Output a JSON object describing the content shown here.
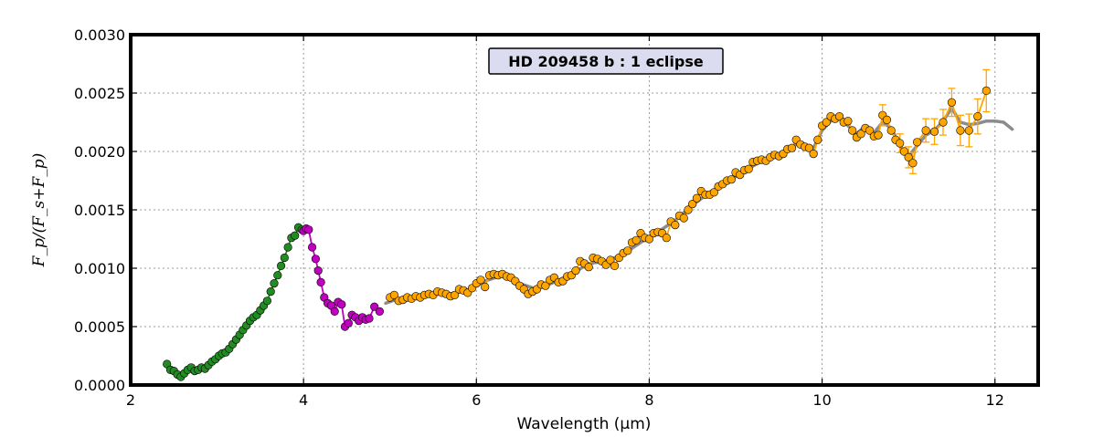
{
  "chart_data": {
    "type": "scatter",
    "title": "HD 209458 b : 1 eclipse",
    "xlabel": "Wavelength (μm)",
    "ylabel": "F_p/(F_s+F_p)",
    "xlim": [
      2,
      12.5
    ],
    "ylim": [
      0,
      0.003
    ],
    "xticks": [
      "2",
      "4",
      "6",
      "8",
      "10",
      "12"
    ],
    "yticks": [
      "0.0000",
      "0.0005",
      "0.0010",
      "0.0015",
      "0.0020",
      "0.0025",
      "0.0030"
    ],
    "grid": true,
    "colors": {
      "green": "#228B22",
      "magenta": "#BF00BF",
      "orange": "#FFA500",
      "model": "#8c8c8c"
    },
    "series": [
      {
        "color": "green",
        "points": [
          [
            2.42,
            0.00018
          ],
          [
            2.46,
            0.00013
          ],
          [
            2.5,
            0.00012
          ],
          [
            2.54,
            9e-05
          ],
          [
            2.58,
            7e-05
          ],
          [
            2.62,
            0.0001
          ],
          [
            2.66,
            0.00013
          ],
          [
            2.7,
            0.00015
          ],
          [
            2.74,
            0.00012
          ],
          [
            2.78,
            0.00013
          ],
          [
            2.82,
            0.00015
          ],
          [
            2.86,
            0.00014
          ],
          [
            2.9,
            0.00017
          ],
          [
            2.94,
            0.0002
          ],
          [
            2.98,
            0.00022
          ],
          [
            3.02,
            0.00025
          ],
          [
            3.06,
            0.00027
          ],
          [
            3.1,
            0.00028
          ],
          [
            3.14,
            0.00031
          ],
          [
            3.18,
            0.00035
          ],
          [
            3.22,
            0.00039
          ],
          [
            3.26,
            0.00043
          ],
          [
            3.3,
            0.00047
          ],
          [
            3.34,
            0.00051
          ],
          [
            3.38,
            0.00055
          ],
          [
            3.42,
            0.00058
          ],
          [
            3.46,
            0.0006
          ],
          [
            3.5,
            0.00064
          ],
          [
            3.54,
            0.00068
          ],
          [
            3.58,
            0.00072
          ],
          [
            3.62,
            0.0008
          ],
          [
            3.66,
            0.00087
          ],
          [
            3.7,
            0.00094
          ],
          [
            3.74,
            0.00102
          ],
          [
            3.78,
            0.00109
          ],
          [
            3.82,
            0.00118
          ],
          [
            3.86,
            0.00126
          ],
          [
            3.9,
            0.00128
          ],
          [
            3.94,
            0.00135
          ],
          [
            3.98,
            0.00133
          ]
        ]
      },
      {
        "color": "magenta",
        "points": [
          [
            4.0,
            0.00132
          ],
          [
            4.03,
            0.00134
          ],
          [
            4.06,
            0.00133
          ],
          [
            4.1,
            0.00118
          ],
          [
            4.14,
            0.00108
          ],
          [
            4.17,
            0.00098
          ],
          [
            4.2,
            0.00088
          ],
          [
            4.24,
            0.00075
          ],
          [
            4.28,
            0.0007
          ],
          [
            4.32,
            0.00068
          ],
          [
            4.36,
            0.00063
          ],
          [
            4.4,
            0.00071
          ],
          [
            4.44,
            0.00069
          ],
          [
            4.48,
            0.0005
          ],
          [
            4.52,
            0.00053
          ],
          [
            4.56,
            0.0006
          ],
          [
            4.6,
            0.00058
          ],
          [
            4.64,
            0.00055
          ],
          [
            4.68,
            0.00058
          ],
          [
            4.72,
            0.00056
          ],
          [
            4.76,
            0.00057
          ],
          [
            4.82,
            0.00067
          ],
          [
            4.88,
            0.00063
          ]
        ]
      },
      {
        "color": "orange",
        "points": [
          [
            5.0,
            0.00075
          ],
          [
            5.05,
            0.00077
          ],
          [
            5.1,
            0.00072
          ],
          [
            5.15,
            0.00073
          ],
          [
            5.2,
            0.00075
          ],
          [
            5.25,
            0.00074
          ],
          [
            5.3,
            0.00076
          ],
          [
            5.35,
            0.00075
          ],
          [
            5.4,
            0.00077
          ],
          [
            5.45,
            0.00078
          ],
          [
            5.5,
            0.00077
          ],
          [
            5.55,
            0.0008
          ],
          [
            5.6,
            0.00079
          ],
          [
            5.65,
            0.00078
          ],
          [
            5.7,
            0.00076
          ],
          [
            5.75,
            0.00077
          ],
          [
            5.8,
            0.00082
          ],
          [
            5.85,
            0.00081
          ],
          [
            5.9,
            0.00079
          ],
          [
            5.95,
            0.00083
          ],
          [
            6.0,
            0.00087
          ],
          [
            6.05,
            0.0009
          ],
          [
            6.1,
            0.00084
          ],
          [
            6.15,
            0.00094
          ],
          [
            6.2,
            0.00095
          ],
          [
            6.25,
            0.00094
          ],
          [
            6.3,
            0.00095
          ],
          [
            6.35,
            0.00093
          ],
          [
            6.4,
            0.00092
          ],
          [
            6.45,
            0.00089
          ],
          [
            6.5,
            0.00085
          ],
          [
            6.55,
            0.00082
          ],
          [
            6.6,
            0.00078
          ],
          [
            6.65,
            0.0008
          ],
          [
            6.7,
            0.00082
          ],
          [
            6.75,
            0.00086
          ],
          [
            6.8,
            0.00085
          ],
          [
            6.85,
            0.0009
          ],
          [
            6.9,
            0.00092
          ],
          [
            6.95,
            0.00088
          ],
          [
            7.0,
            0.00089
          ],
          [
            7.05,
            0.00093
          ],
          [
            7.1,
            0.00094
          ],
          [
            7.15,
            0.00098
          ],
          [
            7.2,
            0.00106
          ],
          [
            7.25,
            0.00104
          ],
          [
            7.3,
            0.00101
          ],
          [
            7.35,
            0.00109
          ],
          [
            7.4,
            0.00108
          ],
          [
            7.45,
            0.00106
          ],
          [
            7.5,
            0.00103
          ],
          [
            7.55,
            0.00107
          ],
          [
            7.6,
            0.00102
          ],
          [
            7.65,
            0.00109
          ],
          [
            7.7,
            0.00113
          ],
          [
            7.75,
            0.00115
          ],
          [
            7.8,
            0.00122
          ],
          [
            7.85,
            0.00124
          ],
          [
            7.9,
            0.0013
          ],
          [
            7.95,
            0.00126
          ],
          [
            8.0,
            0.00125
          ],
          [
            8.05,
            0.0013
          ],
          [
            8.1,
            0.00131
          ],
          [
            8.15,
            0.0013
          ],
          [
            8.2,
            0.00126
          ],
          [
            8.25,
            0.0014
          ],
          [
            8.3,
            0.00137
          ],
          [
            8.35,
            0.00145
          ],
          [
            8.4,
            0.00143
          ],
          [
            8.45,
            0.0015
          ],
          [
            8.5,
            0.00155
          ],
          [
            8.55,
            0.0016
          ],
          [
            8.6,
            0.00166
          ],
          [
            8.65,
            0.00163
          ],
          [
            8.7,
            0.00163
          ],
          [
            8.75,
            0.00165
          ],
          [
            8.8,
            0.0017
          ],
          [
            8.85,
            0.00172
          ],
          [
            8.9,
            0.00175
          ],
          [
            8.95,
            0.00176
          ],
          [
            9.0,
            0.00182
          ],
          [
            9.05,
            0.0018
          ],
          [
            9.1,
            0.00184
          ],
          [
            9.15,
            0.00185
          ],
          [
            9.2,
            0.00191
          ],
          [
            9.25,
            0.00192
          ],
          [
            9.3,
            0.00193
          ],
          [
            9.35,
            0.00192
          ],
          [
            9.4,
            0.00195
          ],
          [
            9.45,
            0.00197
          ],
          [
            9.5,
            0.00196
          ],
          [
            9.55,
            0.00198
          ],
          [
            9.6,
            0.00202
          ],
          [
            9.65,
            0.00203
          ],
          [
            9.7,
            0.0021
          ],
          [
            9.75,
            0.00206
          ],
          [
            9.8,
            0.00204
          ],
          [
            9.85,
            0.00203
          ],
          [
            9.9,
            0.00198
          ],
          [
            9.95,
            0.0021
          ],
          [
            10.0,
            0.00222
          ],
          [
            10.05,
            0.00225
          ],
          [
            10.1,
            0.0023
          ],
          [
            10.15,
            0.00228
          ],
          [
            10.2,
            0.0023
          ],
          [
            10.25,
            0.00225
          ],
          [
            10.3,
            0.00226
          ],
          [
            10.35,
            0.00218
          ],
          [
            10.4,
            0.00212
          ],
          [
            10.45,
            0.00215
          ],
          [
            10.5,
            0.0022
          ],
          [
            10.55,
            0.00218
          ],
          [
            10.6,
            0.00213
          ],
          [
            10.65,
            0.00214
          ],
          [
            10.7,
            0.00231
          ],
          [
            10.75,
            0.00227
          ],
          [
            10.8,
            0.00218
          ],
          [
            10.85,
            0.0021
          ],
          [
            10.9,
            0.00207
          ],
          [
            10.95,
            0.002
          ],
          [
            11.0,
            0.00195
          ],
          [
            11.05,
            0.0019
          ],
          [
            11.1,
            0.00208
          ],
          [
            11.2,
            0.00218
          ],
          [
            11.3,
            0.00217
          ],
          [
            11.4,
            0.00225
          ],
          [
            11.5,
            0.00242
          ],
          [
            11.6,
            0.00218
          ],
          [
            11.7,
            0.00218
          ],
          [
            11.8,
            0.0023
          ],
          [
            11.9,
            0.00252
          ]
        ]
      }
    ],
    "model": [
      [
        4.95,
        0.0007
      ],
      [
        5.1,
        0.00074
      ],
      [
        5.3,
        0.00076
      ],
      [
        5.5,
        0.00078
      ],
      [
        5.7,
        0.00078
      ],
      [
        5.9,
        0.00081
      ],
      [
        6.1,
        0.00089
      ],
      [
        6.3,
        0.00094
      ],
      [
        6.5,
        0.00087
      ],
      [
        6.7,
        0.00082
      ],
      [
        6.9,
        0.00088
      ],
      [
        7.1,
        0.00095
      ],
      [
        7.3,
        0.00104
      ],
      [
        7.5,
        0.00106
      ],
      [
        7.7,
        0.00112
      ],
      [
        7.9,
        0.00122
      ],
      [
        8.1,
        0.00131
      ],
      [
        8.3,
        0.00141
      ],
      [
        8.5,
        0.00154
      ],
      [
        8.7,
        0.00165
      ],
      [
        8.9,
        0.00174
      ],
      [
        9.1,
        0.00183
      ],
      [
        9.3,
        0.00192
      ],
      [
        9.5,
        0.00197
      ],
      [
        9.7,
        0.00206
      ],
      [
        9.9,
        0.00203
      ],
      [
        10.0,
        0.00218
      ],
      [
        10.1,
        0.00226
      ],
      [
        10.2,
        0.00228
      ],
      [
        10.3,
        0.00222
      ],
      [
        10.4,
        0.00215
      ],
      [
        10.5,
        0.00222
      ],
      [
        10.6,
        0.00216
      ],
      [
        10.7,
        0.00225
      ],
      [
        10.8,
        0.0022
      ],
      [
        10.9,
        0.00205
      ],
      [
        11.0,
        0.00196
      ],
      [
        11.1,
        0.00205
      ],
      [
        11.2,
        0.00214
      ],
      [
        11.3,
        0.00218
      ],
      [
        11.4,
        0.00226
      ],
      [
        11.5,
        0.00237
      ],
      [
        11.6,
        0.00225
      ],
      [
        11.7,
        0.00223
      ],
      [
        11.8,
        0.00224
      ],
      [
        11.9,
        0.00226
      ],
      [
        12.0,
        0.00226
      ],
      [
        12.1,
        0.00225
      ],
      [
        12.2,
        0.00219
      ]
    ],
    "errorbars": [
      [
        10.7,
        0.00231,
        9e-05
      ],
      [
        10.9,
        0.00207,
        8e-05
      ],
      [
        11.0,
        0.00195,
        9e-05
      ],
      [
        11.05,
        0.0019,
        9e-05
      ],
      [
        11.2,
        0.00218,
        0.0001
      ],
      [
        11.3,
        0.00217,
        0.00011
      ],
      [
        11.4,
        0.00225,
        0.00011
      ],
      [
        11.5,
        0.00242,
        0.00012
      ],
      [
        11.6,
        0.00218,
        0.00013
      ],
      [
        11.7,
        0.00218,
        0.00014
      ],
      [
        11.8,
        0.0023,
        0.00015
      ],
      [
        11.9,
        0.00252,
        0.00018
      ]
    ]
  }
}
